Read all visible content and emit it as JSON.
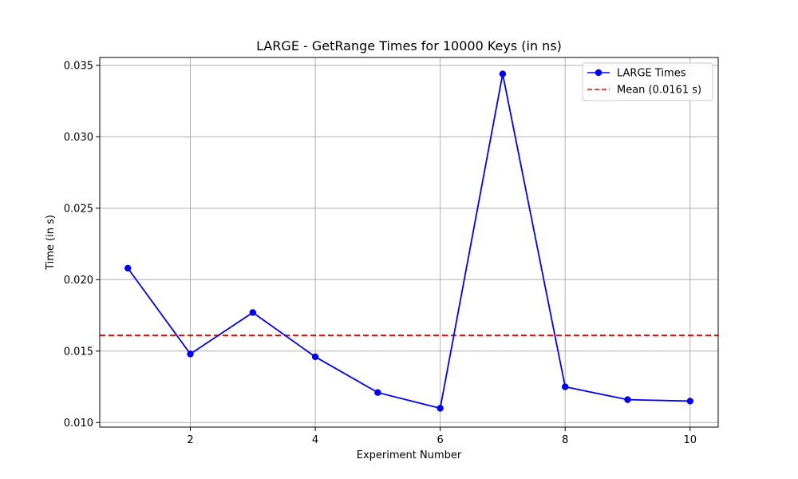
{
  "chart_data": {
    "type": "line",
    "title": "LARGE - GetRange Times for 10000 Keys (in ns)",
    "xlabel": "Experiment Number",
    "ylabel": "Time (in s)",
    "xlim": [
      0.55,
      10.45
    ],
    "ylim": [
      0.00968,
      0.03555
    ],
    "x_ticks": [
      2,
      4,
      6,
      8,
      10
    ],
    "y_ticks": [
      0.01,
      0.015,
      0.02,
      0.025,
      0.03,
      0.035
    ],
    "y_tick_labels": [
      "0.010",
      "0.015",
      "0.020",
      "0.025",
      "0.030",
      "0.035"
    ],
    "grid": true,
    "legend_position": "top-right",
    "x": [
      1,
      2,
      3,
      4,
      5,
      6,
      7,
      8,
      9,
      10
    ],
    "series": [
      {
        "name": "LARGE Times",
        "color": "#0000ff",
        "marker": "circle",
        "values": [
          0.0208,
          0.0148,
          0.0177,
          0.0146,
          0.0121,
          0.011,
          0.0344,
          0.0125,
          0.0116,
          0.0115
        ]
      }
    ],
    "reference_lines": [
      {
        "name": "Mean (0.0161 s)",
        "value": 0.0161,
        "color": "#ff0000",
        "style": "dashed"
      }
    ]
  }
}
